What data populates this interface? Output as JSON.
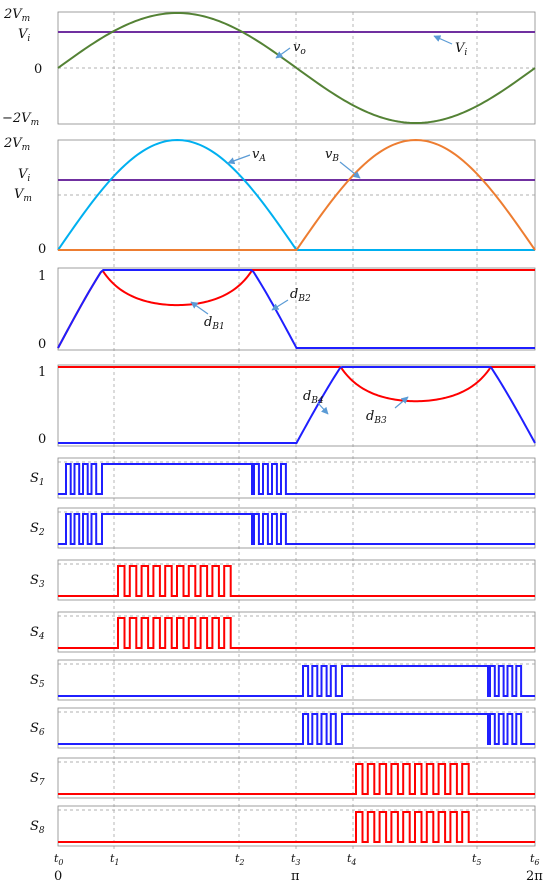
{
  "colors": {
    "green": "#548235",
    "purple": "#7030a0",
    "cyan": "#00b0f0",
    "orange": "#ed7d31",
    "red": "#ff0000",
    "blue": "#1f1fff",
    "arrow": "#5b9bd5"
  },
  "time_axis": {
    "ticks": [
      {
        "main": "t",
        "sub": "0"
      },
      {
        "main": "t",
        "sub": "1"
      },
      {
        "main": "t",
        "sub": "2"
      },
      {
        "main": "t",
        "sub": "3"
      },
      {
        "main": "t",
        "sub": "4"
      },
      {
        "main": "t",
        "sub": "5"
      },
      {
        "main": "t",
        "sub": "6"
      }
    ],
    "phase_labels": [
      "0",
      "π",
      "2π"
    ]
  },
  "panel1": {
    "y_labels": [
      {
        "main": "2V",
        "sub": "m"
      },
      {
        "main": "V",
        "sub": "i"
      },
      {
        "text": "0"
      },
      {
        "main": "−2V",
        "sub": "m"
      }
    ],
    "curve_labels": [
      {
        "main": "v",
        "sub": "o"
      },
      {
        "main": "V",
        "sub": "i"
      }
    ]
  },
  "panel2": {
    "y_labels": [
      {
        "main": "2V",
        "sub": "m"
      },
      {
        "main": "V",
        "sub": "i"
      },
      {
        "main": "V",
        "sub": "m"
      },
      {
        "text": "0"
      }
    ],
    "curve_labels": [
      {
        "main": "v",
        "sub": "A"
      },
      {
        "main": "v",
        "sub": "B"
      }
    ]
  },
  "panel3": {
    "y_labels": [
      {
        "text": "1"
      },
      {
        "text": "0"
      }
    ],
    "curve_labels": [
      {
        "main": "d",
        "sub": "B1"
      },
      {
        "main": "d",
        "sub": "B2"
      }
    ]
  },
  "panel4": {
    "y_labels": [
      {
        "text": "1"
      },
      {
        "text": "0"
      }
    ],
    "curve_labels": [
      {
        "main": "d",
        "sub": "B4"
      },
      {
        "main": "d",
        "sub": "B3"
      }
    ]
  },
  "switches": [
    {
      "main": "S",
      "sub": "1"
    },
    {
      "main": "S",
      "sub": "2"
    },
    {
      "main": "S",
      "sub": "3"
    },
    {
      "main": "S",
      "sub": "4"
    },
    {
      "main": "S",
      "sub": "5"
    },
    {
      "main": "S",
      "sub": "6"
    },
    {
      "main": "S",
      "sub": "7"
    },
    {
      "main": "S",
      "sub": "8"
    }
  ]
}
